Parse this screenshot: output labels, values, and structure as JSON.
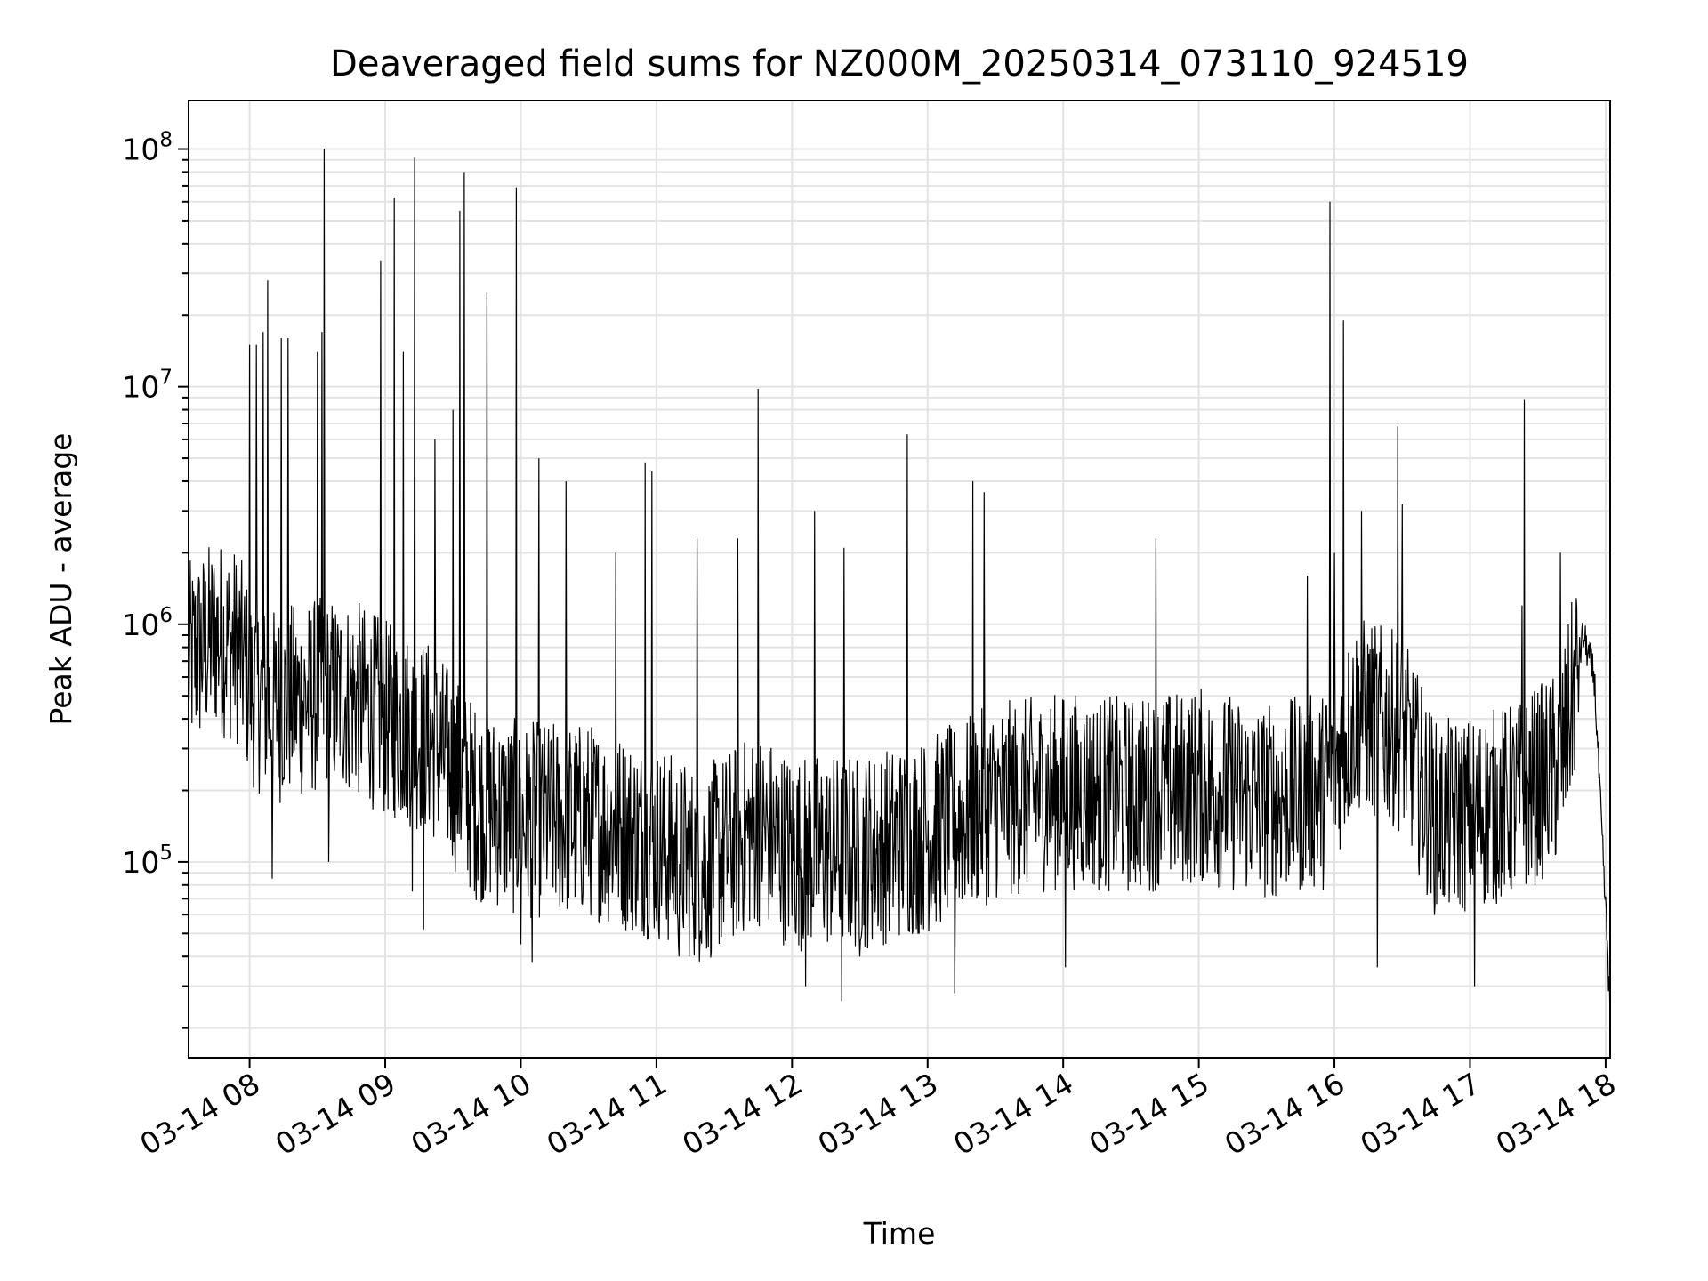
{
  "chart_data": {
    "type": "line",
    "title": "Deaveraged field sums for NZ000M_20250314_073110_924519",
    "xlabel": "Time",
    "ylabel": "Peak ADU - average",
    "yscale": "log",
    "ylim": [
      15000,
      160000000
    ],
    "xlim": [
      "03-14 07:33",
      "03-14 18:02"
    ],
    "grid": "major and minor",
    "line_color": "#000000",
    "x_tick_labels": [
      "03-14 08",
      "03-14 09",
      "03-14 10",
      "03-14 11",
      "03-14 12",
      "03-14 13",
      "03-14 14",
      "03-14 15",
      "03-14 16",
      "03-14 17",
      "03-14 18"
    ],
    "y_tick_labels": [
      {
        "base": "10",
        "exp": "5",
        "value": 100000
      },
      {
        "base": "10",
        "exp": "6",
        "value": 1000000
      },
      {
        "base": "10",
        "exp": "7",
        "value": 10000000
      },
      {
        "base": "10",
        "exp": "8",
        "value": 100000000
      }
    ],
    "series": [
      {
        "baseline": [
          [
            "03-14 07:33",
            700000
          ],
          [
            "03-14 07:45",
            900000
          ],
          [
            "03-14 07:55",
            800000
          ],
          [
            "03-14 08:00",
            550000
          ],
          [
            "03-14 08:10",
            450000
          ],
          [
            "03-14 08:30",
            500000
          ],
          [
            "03-14 08:45",
            500000
          ],
          [
            "03-14 09:00",
            400000
          ],
          [
            "03-14 09:20",
            330000
          ],
          [
            "03-14 09:40",
            180000
          ],
          [
            "03-14 10:00",
            150000
          ],
          [
            "03-14 10:30",
            150000
          ],
          [
            "03-14 11:00",
            120000
          ],
          [
            "03-14 11:20",
            95000
          ],
          [
            "03-14 11:45",
            140000
          ],
          [
            "03-14 12:00",
            110000
          ],
          [
            "03-14 12:30",
            110000
          ],
          [
            "03-14 13:00",
            130000
          ],
          [
            "03-14 13:30",
            180000
          ],
          [
            "03-14 14:00",
            200000
          ],
          [
            "03-14 14:30",
            190000
          ],
          [
            "03-14 15:00",
            210000
          ],
          [
            "03-14 15:30",
            180000
          ],
          [
            "03-14 15:55",
            200000
          ],
          [
            "03-14 16:10",
            420000
          ],
          [
            "03-14 16:30",
            350000
          ],
          [
            "03-14 16:45",
            150000
          ],
          [
            "03-14 17:00",
            160000
          ],
          [
            "03-14 17:20",
            180000
          ],
          [
            "03-14 17:40",
            250000
          ],
          [
            "03-14 17:50",
            900000
          ],
          [
            "03-14 17:55",
            600000
          ],
          [
            "03-14 17:58",
            150000
          ],
          [
            "03-14 18:01",
            40000
          ],
          [
            "03-14 18:02",
            21000
          ]
        ],
        "spikes": [
          [
            "03-14 08:00",
            15000000
          ],
          [
            "03-14 08:03",
            15000000
          ],
          [
            "03-14 08:06",
            17000000
          ],
          [
            "03-14 08:08",
            28000000
          ],
          [
            "03-14 08:14",
            16000000
          ],
          [
            "03-14 08:17",
            16000000
          ],
          [
            "03-14 08:30",
            14000000
          ],
          [
            "03-14 08:32",
            17000000
          ],
          [
            "03-14 08:33",
            100000000
          ],
          [
            "03-14 08:58",
            34000000
          ],
          [
            "03-14 09:04",
            62000000
          ],
          [
            "03-14 09:08",
            14000000
          ],
          [
            "03-14 09:13",
            92000000
          ],
          [
            "03-14 09:22",
            6000000
          ],
          [
            "03-14 09:30",
            8000000
          ],
          [
            "03-14 09:33",
            55000000
          ],
          [
            "03-14 09:35",
            80000000
          ],
          [
            "03-14 09:45",
            25000000
          ],
          [
            "03-14 09:58",
            69000000
          ],
          [
            "03-14 10:08",
            5000000
          ],
          [
            "03-14 10:20",
            4000000
          ],
          [
            "03-14 10:42",
            2000000
          ],
          [
            "03-14 10:55",
            4800000
          ],
          [
            "03-14 10:58",
            4400000
          ],
          [
            "03-14 11:18",
            2300000
          ],
          [
            "03-14 11:36",
            2300000
          ],
          [
            "03-14 11:45",
            9800000
          ],
          [
            "03-14 12:10",
            3000000
          ],
          [
            "03-14 12:23",
            2100000
          ],
          [
            "03-14 12:51",
            6300000
          ],
          [
            "03-14 13:20",
            4000000
          ],
          [
            "03-14 13:25",
            3600000
          ],
          [
            "03-14 14:41",
            2300000
          ],
          [
            "03-14 15:48",
            1600000
          ],
          [
            "03-14 15:58",
            60000000
          ],
          [
            "03-14 16:00",
            2000000
          ],
          [
            "03-14 16:04",
            19000000
          ],
          [
            "03-14 16:12",
            3000000
          ],
          [
            "03-14 16:28",
            6800000
          ],
          [
            "03-14 16:30",
            3200000
          ],
          [
            "03-14 17:23",
            1200000
          ],
          [
            "03-14 17:24",
            8800000
          ],
          [
            "03-14 17:40",
            2000000
          ]
        ],
        "dips": [
          [
            "03-14 08:10",
            85000
          ],
          [
            "03-14 08:35",
            100000
          ],
          [
            "03-14 09:12",
            75000
          ],
          [
            "03-14 09:17",
            52000
          ],
          [
            "03-14 10:00",
            45000
          ],
          [
            "03-14 10:05",
            38000
          ],
          [
            "03-14 11:10",
            40000
          ],
          [
            "03-14 12:06",
            30000
          ],
          [
            "03-14 12:22",
            26000
          ],
          [
            "03-14 12:30",
            40000
          ],
          [
            "03-14 13:12",
            28000
          ],
          [
            "03-14 14:01",
            36000
          ],
          [
            "03-14 16:19",
            36000
          ],
          [
            "03-14 17:02",
            30000
          ]
        ]
      }
    ]
  }
}
